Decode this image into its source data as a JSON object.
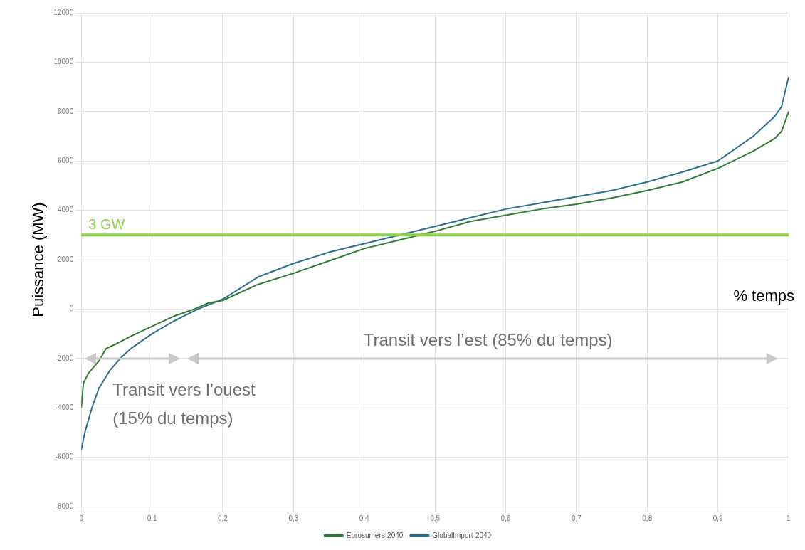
{
  "chart_data": {
    "type": "line",
    "xlabel": "% temps",
    "ylabel": "Puissance (MW)",
    "xlim": [
      0,
      1
    ],
    "xticks": [
      0,
      {
        "value": 0.1,
        "label": "0,1"
      },
      {
        "value": 0.2,
        "label": "0,2"
      },
      {
        "value": 0.3,
        "label": "0,3"
      },
      {
        "value": 0.4,
        "label": "0,4"
      },
      {
        "value": 0.5,
        "label": "0,5"
      },
      {
        "value": 0.6,
        "label": "0,6"
      },
      {
        "value": 0.7,
        "label": "0,7"
      },
      {
        "value": 0.8,
        "label": "0,8"
      },
      {
        "value": 0.9,
        "label": "0,9"
      },
      1
    ],
    "ylim": [
      -8000,
      12000
    ],
    "yticks": [
      -8000,
      -6000,
      -4000,
      -2000,
      0,
      2000,
      4000,
      6000,
      8000,
      10000,
      12000
    ],
    "grid": true,
    "legend": "bottom",
    "marker": "none",
    "line_style": "solid",
    "series": [
      {
        "name": "Eprosumers-2040",
        "color": "#2e7d32",
        "x": [
          0,
          0.003,
          0.01,
          0.025,
          0.035,
          0.05,
          0.07,
          0.1,
          0.13,
          0.16,
          0.18,
          0.2,
          0.25,
          0.3,
          0.35,
          0.4,
          0.45,
          0.5,
          0.55,
          0.6,
          0.65,
          0.7,
          0.75,
          0.8,
          0.85,
          0.9,
          0.95,
          0.98,
          0.99,
          1
        ],
        "values": [
          -4000,
          -3000,
          -2600,
          -2100,
          -1600,
          -1400,
          -1100,
          -700,
          -300,
          0,
          250,
          350,
          1000,
          1450,
          1950,
          2450,
          2800,
          3150,
          3550,
          3800,
          4050,
          4250,
          4500,
          4800,
          5150,
          5700,
          6400,
          6900,
          7200,
          8000
        ]
      },
      {
        "name": "GlobalImport-2040",
        "color": "#2b6f8f",
        "x": [
          0,
          0.005,
          0.015,
          0.025,
          0.04,
          0.055,
          0.07,
          0.1,
          0.13,
          0.165,
          0.2,
          0.25,
          0.3,
          0.35,
          0.4,
          0.45,
          0.5,
          0.55,
          0.6,
          0.65,
          0.7,
          0.75,
          0.8,
          0.85,
          0.9,
          0.95,
          0.98,
          0.99,
          1
        ],
        "values": [
          -5700,
          -5000,
          -4000,
          -3200,
          -2500,
          -2000,
          -1600,
          -1000,
          -500,
          0,
          400,
          1300,
          1850,
          2300,
          2650,
          3000,
          3350,
          3700,
          4050,
          4300,
          4550,
          4800,
          5150,
          5550,
          6000,
          7000,
          7800,
          8200,
          9400
        ]
      }
    ],
    "ref_lines": [
      {
        "axis": "y",
        "value": 3000,
        "label": "3 GW",
        "color": "#8fd14f"
      }
    ],
    "annotations": [
      "Transit vers l’ouest (15% du temps)",
      "Transit vers l’est (85% du temps)"
    ]
  }
}
